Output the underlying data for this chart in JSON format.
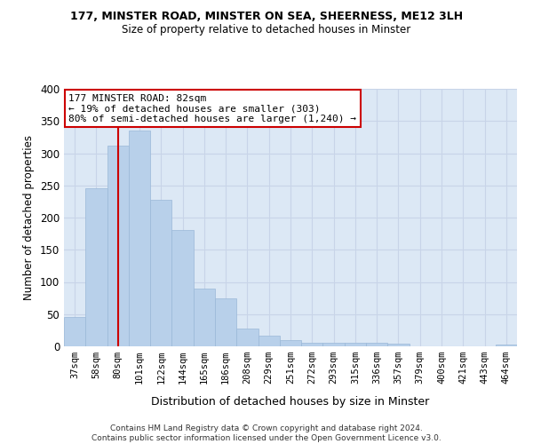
{
  "title1": "177, MINSTER ROAD, MINSTER ON SEA, SHEERNESS, ME12 3LH",
  "title2": "Size of property relative to detached houses in Minster",
  "xlabel": "Distribution of detached houses by size in Minster",
  "ylabel": "Number of detached properties",
  "categories": [
    "37sqm",
    "58sqm",
    "80sqm",
    "101sqm",
    "122sqm",
    "144sqm",
    "165sqm",
    "186sqm",
    "208sqm",
    "229sqm",
    "251sqm",
    "272sqm",
    "293sqm",
    "315sqm",
    "336sqm",
    "357sqm",
    "379sqm",
    "400sqm",
    "421sqm",
    "443sqm",
    "464sqm"
  ],
  "values": [
    45,
    246,
    312,
    335,
    227,
    181,
    90,
    75,
    27,
    16,
    10,
    5,
    6,
    6,
    5,
    4,
    0,
    0,
    0,
    0,
    3
  ],
  "bar_color": "#b8d0ea",
  "bar_edge_color": "#9ab8d8",
  "vline_x": 2.0,
  "annotation_title": "177 MINSTER ROAD: 82sqm",
  "annotation_line1": "← 19% of detached houses are smaller (303)",
  "annotation_line2": "80% of semi-detached houses are larger (1,240) →",
  "annotation_box_color": "#ffffff",
  "annotation_border_color": "#cc0000",
  "vline_color": "#cc0000",
  "grid_color": "#c8d4e8",
  "background_color": "#dce8f5",
  "footer1": "Contains HM Land Registry data © Crown copyright and database right 2024.",
  "footer2": "Contains public sector information licensed under the Open Government Licence v3.0.",
  "ylim": [
    0,
    400
  ],
  "yticks": [
    0,
    50,
    100,
    150,
    200,
    250,
    300,
    350,
    400
  ]
}
